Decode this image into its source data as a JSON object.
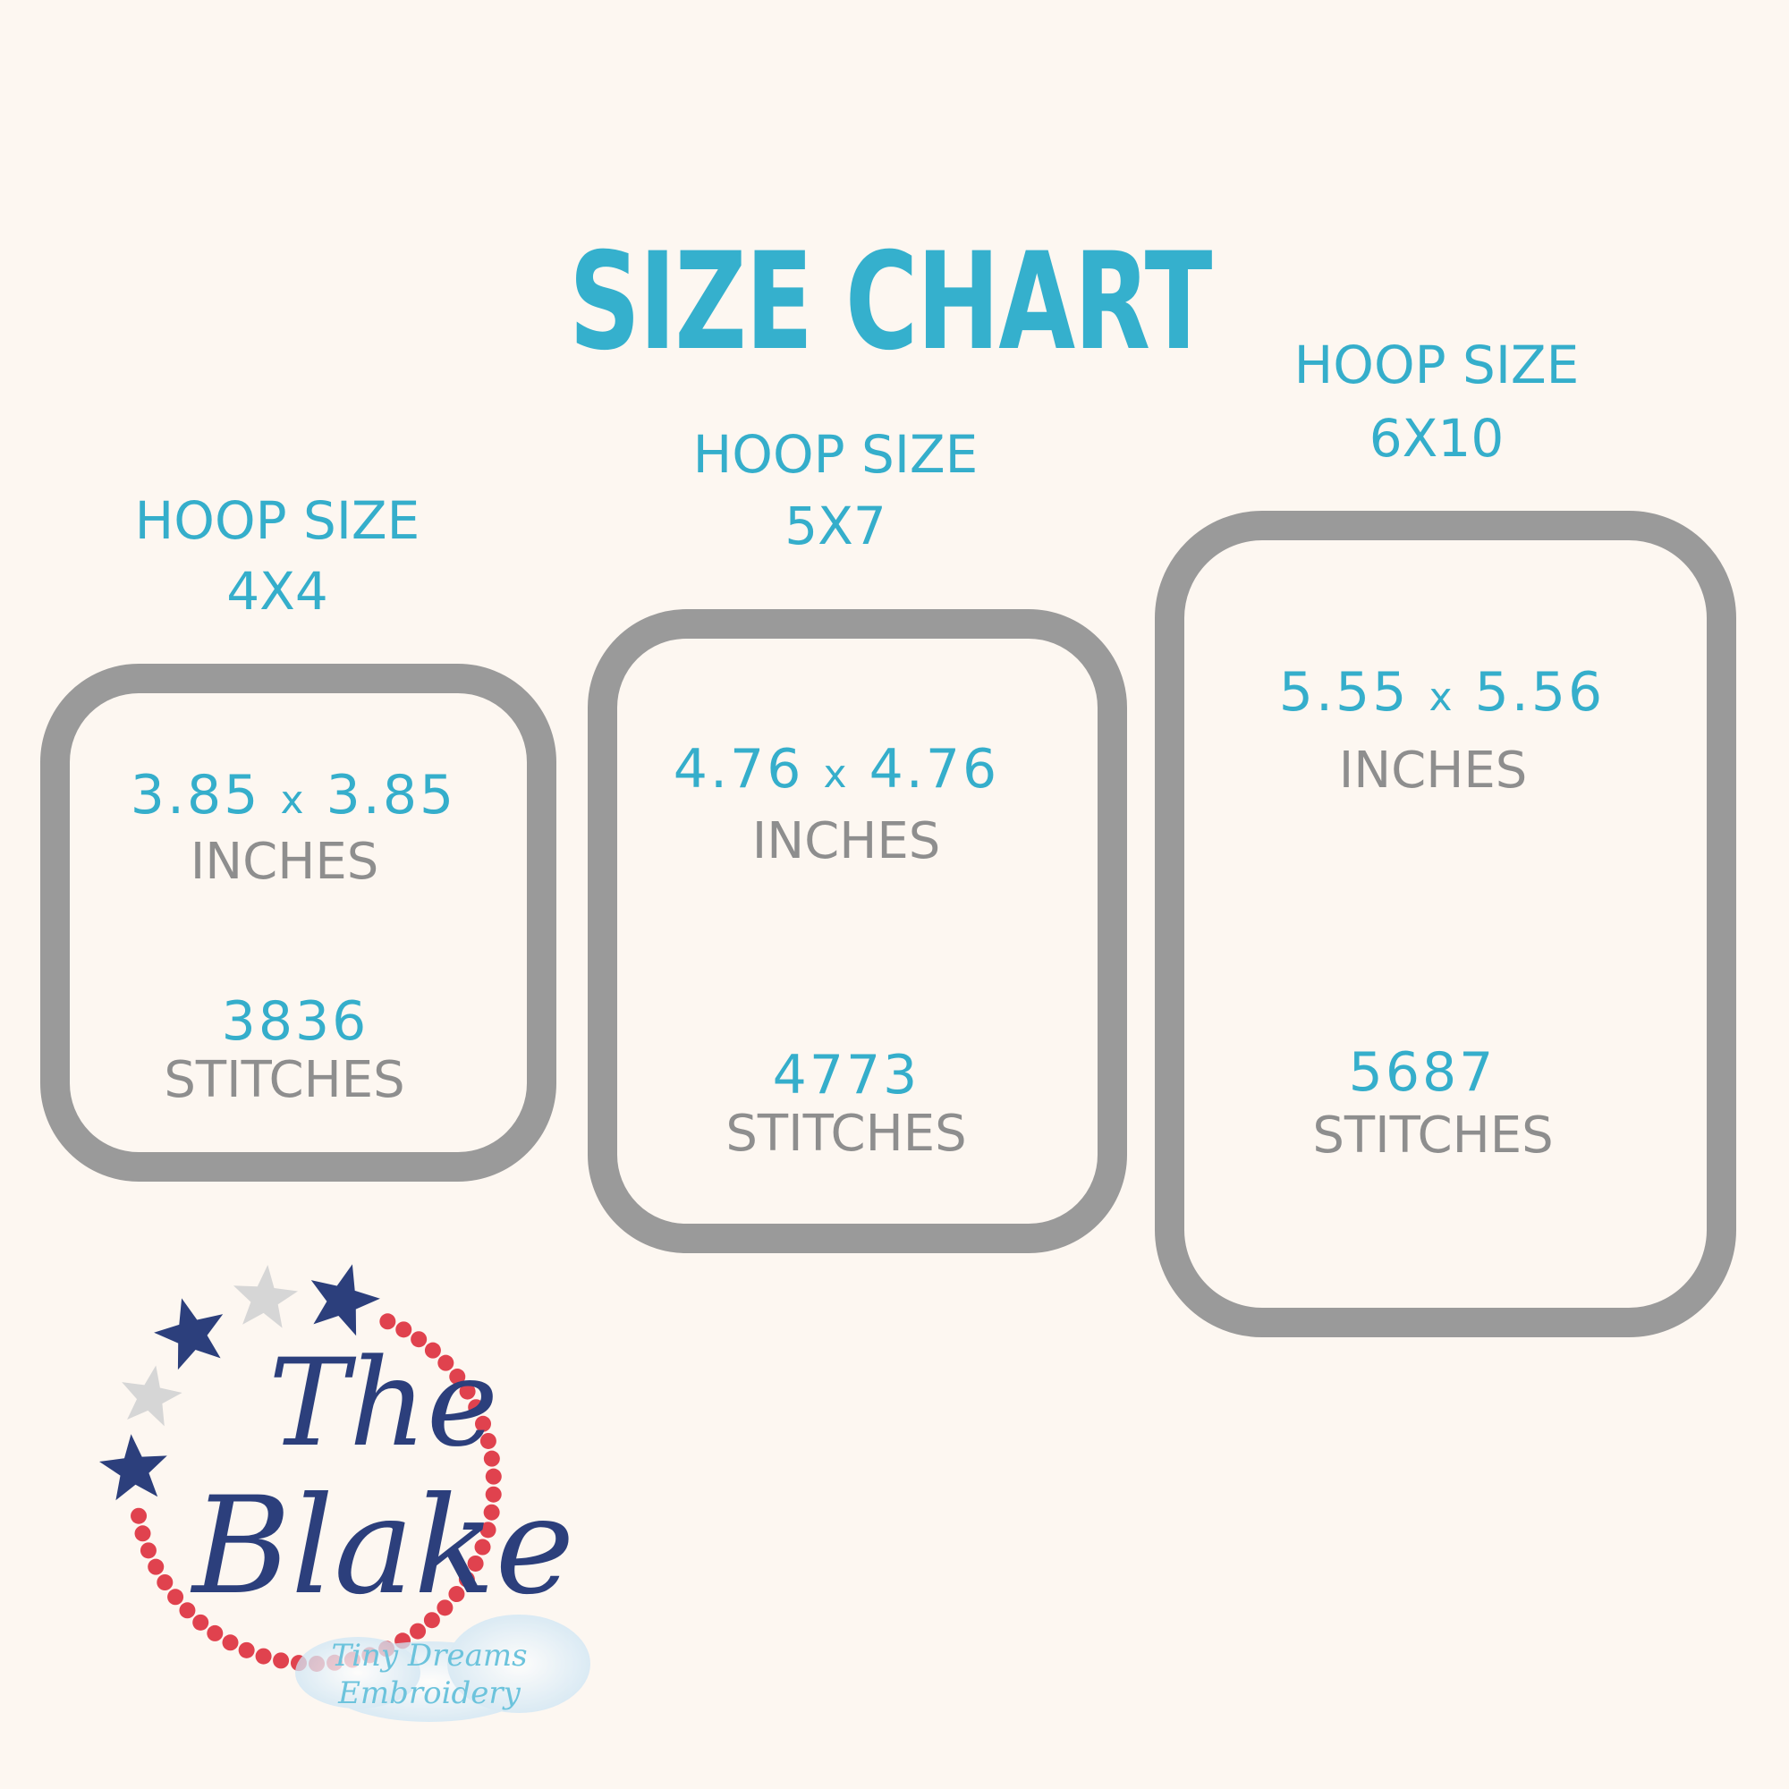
{
  "title": "SIZE CHART",
  "hoops": [
    {
      "label": "HOOP SIZE",
      "size": "4X4",
      "width": "3.85",
      "times": "x",
      "height": "3.85",
      "unit": "INCHES",
      "stitches": "3836",
      "stitches_label": "STITCHES"
    },
    {
      "label": "HOOP SIZE",
      "size": "5X7",
      "width": "4.76",
      "times": "x",
      "height": "4.76",
      "unit": "INCHES",
      "stitches": "4773",
      "stitches_label": "STITCHES"
    },
    {
      "label": "HOOP SIZE",
      "size": "6X10",
      "width": "5.55",
      "times": "x",
      "height": "5.56",
      "unit": "INCHES",
      "stitches": "5687",
      "stitches_label": "STITCHES"
    }
  ],
  "logo": {
    "line1": "The",
    "line2": "Blake",
    "watermark1": "Tiny Dreams",
    "watermark2": "Embroidery"
  },
  "colors": {
    "accent": "#35b0cd",
    "gray_text": "#8e8e8e",
    "hoop_frame": "#9a9a9a",
    "background": "#fdf7f1",
    "navy": "#2c3f7c",
    "red": "#e0424e"
  }
}
